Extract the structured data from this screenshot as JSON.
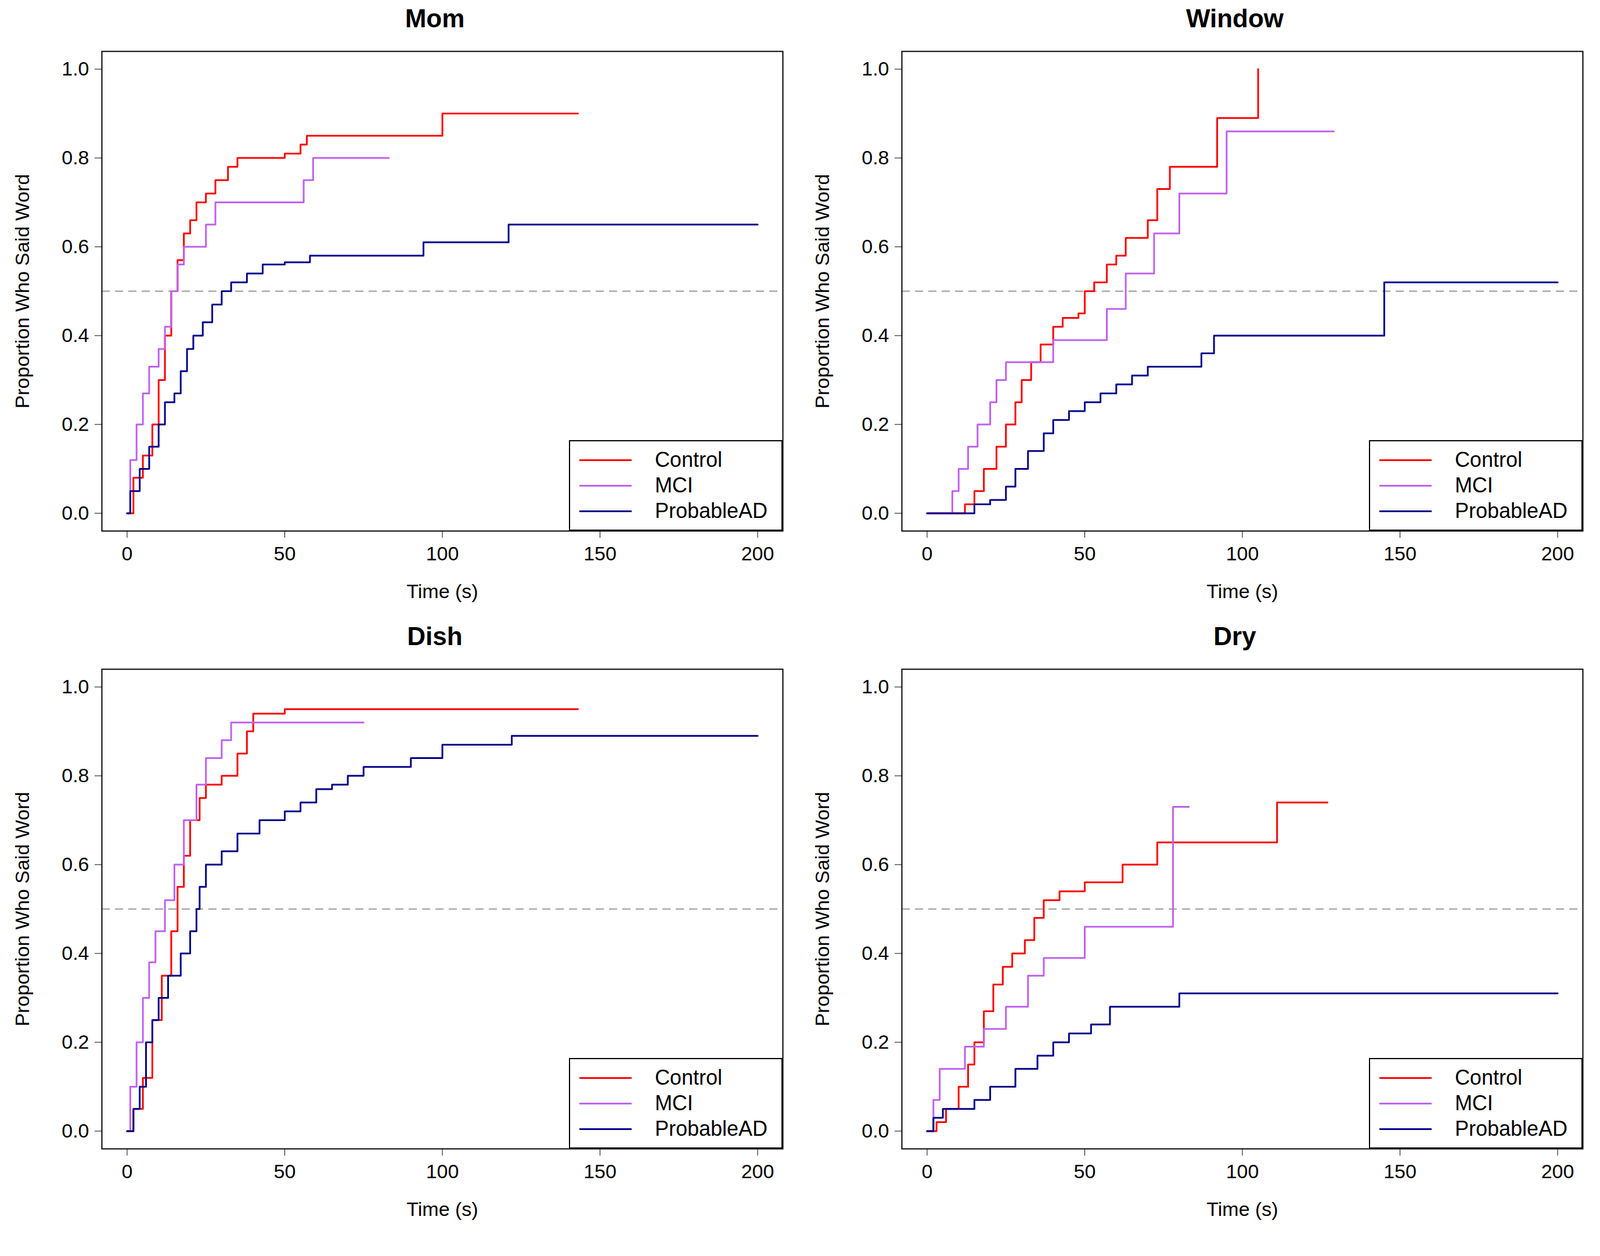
{
  "chart_data": [
    {
      "type": "line",
      "title": "Mom",
      "x_label": "Time (s)",
      "y_label": "Proportion Who Said Word",
      "xlim": [
        -8,
        208
      ],
      "ylim": [
        -0.04,
        1.04
      ],
      "xticks": [
        0,
        50,
        100,
        150,
        200
      ],
      "yticks": [
        {
          "value": 0,
          "label": "0.0"
        },
        {
          "value": 0.2,
          "label": "0.2"
        },
        {
          "value": 0.4,
          "label": "0.4"
        },
        {
          "value": 0.6,
          "label": "0.6"
        },
        {
          "value": 0.8,
          "label": "0.8"
        },
        {
          "value": 1,
          "label": "1.0"
        }
      ],
      "reference_line": 0.5,
      "legend": "bottom-right",
      "series": [
        {
          "name": "Control",
          "color": "#ff0000",
          "line_style": "step",
          "x": [
            0,
            2,
            5,
            8,
            10,
            12,
            14,
            16,
            18,
            20,
            22,
            25,
            28,
            32,
            35,
            50,
            55,
            57,
            100,
            143
          ],
          "values": [
            0,
            0.08,
            0.13,
            0.2,
            0.3,
            0.4,
            0.5,
            0.57,
            0.63,
            0.66,
            0.7,
            0.72,
            0.75,
            0.78,
            0.8,
            0.81,
            0.83,
            0.85,
            0.9,
            0.9
          ]
        },
        {
          "name": "MCI",
          "color": "#c060f0",
          "line_style": "step",
          "x": [
            0,
            1,
            3,
            5,
            7,
            10,
            12,
            14,
            16,
            18,
            25,
            28,
            56,
            59,
            83
          ],
          "values": [
            0,
            0.12,
            0.2,
            0.27,
            0.33,
            0.37,
            0.42,
            0.5,
            0.56,
            0.6,
            0.65,
            0.7,
            0.75,
            0.8,
            0.8
          ]
        },
        {
          "name": "ProbableAD",
          "color": "#00008b",
          "line_style": "step",
          "x": [
            0,
            1,
            4,
            7,
            10,
            12,
            15,
            17,
            19,
            21,
            24,
            27,
            30,
            33,
            38,
            43,
            50,
            58,
            94,
            121,
            200
          ],
          "values": [
            0,
            0.05,
            0.1,
            0.15,
            0.2,
            0.25,
            0.27,
            0.32,
            0.37,
            0.4,
            0.43,
            0.47,
            0.5,
            0.52,
            0.54,
            0.56,
            0.565,
            0.58,
            0.61,
            0.65,
            0.65
          ]
        }
      ]
    },
    {
      "type": "line",
      "title": "Window",
      "x_label": "Time (s)",
      "y_label": "Proportion Who Said Word",
      "xlim": [
        -8,
        208
      ],
      "ylim": [
        -0.04,
        1.04
      ],
      "xticks": [
        0,
        50,
        100,
        150,
        200
      ],
      "yticks": [
        {
          "value": 0,
          "label": "0.0"
        },
        {
          "value": 0.2,
          "label": "0.2"
        },
        {
          "value": 0.4,
          "label": "0.4"
        },
        {
          "value": 0.6,
          "label": "0.6"
        },
        {
          "value": 0.8,
          "label": "0.8"
        },
        {
          "value": 1,
          "label": "1.0"
        }
      ],
      "reference_line": 0.5,
      "legend": "bottom-right",
      "series": [
        {
          "name": "Control",
          "color": "#ff0000",
          "line_style": "step",
          "x": [
            0,
            10,
            12,
            15,
            18,
            22,
            25,
            28,
            30,
            33,
            36,
            40,
            43,
            48,
            50,
            53,
            57,
            60,
            63,
            70,
            73,
            77,
            92,
            105
          ],
          "values": [
            0,
            0,
            0.02,
            0.05,
            0.1,
            0.15,
            0.2,
            0.25,
            0.3,
            0.34,
            0.38,
            0.42,
            0.44,
            0.45,
            0.5,
            0.52,
            0.56,
            0.58,
            0.62,
            0.66,
            0.73,
            0.78,
            0.89,
            1
          ]
        },
        {
          "name": "MCI",
          "color": "#c060f0",
          "line_style": "step",
          "x": [
            0,
            6,
            8,
            10,
            13,
            16,
            20,
            22,
            25,
            38,
            40,
            57,
            63,
            72,
            80,
            95,
            129
          ],
          "values": [
            0,
            0,
            0.05,
            0.1,
            0.15,
            0.2,
            0.25,
            0.3,
            0.34,
            0.34,
            0.39,
            0.46,
            0.54,
            0.63,
            0.72,
            0.86,
            0.86
          ]
        },
        {
          "name": "ProbableAD",
          "color": "#00008b",
          "line_style": "step",
          "x": [
            0,
            12,
            15,
            20,
            25,
            28,
            32,
            37,
            40,
            45,
            50,
            55,
            60,
            65,
            70,
            87,
            91,
            145,
            200
          ],
          "values": [
            0,
            0,
            0.02,
            0.03,
            0.06,
            0.1,
            0.14,
            0.18,
            0.21,
            0.23,
            0.25,
            0.27,
            0.29,
            0.31,
            0.33,
            0.36,
            0.4,
            0.52,
            0.52
          ]
        }
      ]
    },
    {
      "type": "line",
      "title": "Dish",
      "x_label": "Time (s)",
      "y_label": "Proportion Who Said Word",
      "xlim": [
        -8,
        208
      ],
      "ylim": [
        -0.04,
        1.04
      ],
      "xticks": [
        0,
        50,
        100,
        150,
        200
      ],
      "yticks": [
        {
          "value": 0,
          "label": "0.0"
        },
        {
          "value": 0.2,
          "label": "0.2"
        },
        {
          "value": 0.4,
          "label": "0.4"
        },
        {
          "value": 0.6,
          "label": "0.6"
        },
        {
          "value": 0.8,
          "label": "0.8"
        },
        {
          "value": 1,
          "label": "1.0"
        }
      ],
      "reference_line": 0.5,
      "legend": "bottom-right",
      "series": [
        {
          "name": "Control",
          "color": "#ff0000",
          "line_style": "step",
          "x": [
            0,
            2,
            5,
            8,
            11,
            14,
            16,
            18,
            20,
            23,
            25,
            30,
            35,
            38,
            40,
            50,
            143
          ],
          "values": [
            0,
            0.05,
            0.12,
            0.25,
            0.35,
            0.45,
            0.55,
            0.62,
            0.7,
            0.75,
            0.78,
            0.8,
            0.85,
            0.9,
            0.94,
            0.95,
            0.95
          ]
        },
        {
          "name": "MCI",
          "color": "#c060f0",
          "line_style": "step",
          "x": [
            0,
            1,
            3,
            5,
            7,
            9,
            12,
            15,
            18,
            22,
            25,
            30,
            33,
            75
          ],
          "values": [
            0,
            0.1,
            0.2,
            0.3,
            0.38,
            0.45,
            0.52,
            0.6,
            0.7,
            0.78,
            0.84,
            0.88,
            0.92,
            0.92
          ]
        },
        {
          "name": "ProbableAD",
          "color": "#00008b",
          "line_style": "step",
          "x": [
            0,
            2,
            4,
            6,
            8,
            10,
            13,
            17,
            20,
            22,
            23,
            25,
            30,
            35,
            42,
            50,
            55,
            60,
            65,
            70,
            75,
            90,
            100,
            122,
            200
          ],
          "values": [
            0,
            0.05,
            0.1,
            0.2,
            0.25,
            0.3,
            0.35,
            0.4,
            0.45,
            0.5,
            0.55,
            0.6,
            0.63,
            0.67,
            0.7,
            0.72,
            0.74,
            0.77,
            0.78,
            0.8,
            0.82,
            0.84,
            0.87,
            0.89,
            0.89
          ]
        }
      ]
    },
    {
      "type": "line",
      "title": "Dry",
      "x_label": "Time (s)",
      "y_label": "Proportion Who Said Word",
      "xlim": [
        -8,
        208
      ],
      "ylim": [
        -0.04,
        1.04
      ],
      "xticks": [
        0,
        50,
        100,
        150,
        200
      ],
      "yticks": [
        {
          "value": 0,
          "label": "0.0"
        },
        {
          "value": 0.2,
          "label": "0.2"
        },
        {
          "value": 0.4,
          "label": "0.4"
        },
        {
          "value": 0.6,
          "label": "0.6"
        },
        {
          "value": 0.8,
          "label": "0.8"
        },
        {
          "value": 1,
          "label": "1.0"
        }
      ],
      "reference_line": 0.5,
      "legend": "bottom-right",
      "series": [
        {
          "name": "Control",
          "color": "#ff0000",
          "line_style": "step",
          "x": [
            0,
            3,
            6,
            10,
            13,
            15,
            18,
            21,
            24,
            27,
            31,
            34,
            37,
            42,
            50,
            62,
            73,
            111,
            127
          ],
          "values": [
            0,
            0.02,
            0.05,
            0.1,
            0.15,
            0.2,
            0.27,
            0.33,
            0.37,
            0.4,
            0.43,
            0.48,
            0.52,
            0.54,
            0.56,
            0.6,
            0.65,
            0.74,
            0.74
          ]
        },
        {
          "name": "MCI",
          "color": "#c060f0",
          "line_style": "step",
          "x": [
            0,
            2,
            4,
            12,
            18,
            25,
            32,
            37,
            50,
            78,
            83
          ],
          "values": [
            0,
            0.07,
            0.14,
            0.19,
            0.23,
            0.28,
            0.35,
            0.39,
            0.46,
            0.73,
            0.73
          ]
        },
        {
          "name": "ProbableAD",
          "color": "#00008b",
          "line_style": "step",
          "x": [
            0,
            2,
            5,
            15,
            20,
            28,
            35,
            40,
            45,
            52,
            58,
            80,
            200
          ],
          "values": [
            0,
            0.03,
            0.05,
            0.07,
            0.1,
            0.14,
            0.17,
            0.2,
            0.22,
            0.24,
            0.28,
            0.31,
            0.31
          ]
        }
      ]
    }
  ]
}
